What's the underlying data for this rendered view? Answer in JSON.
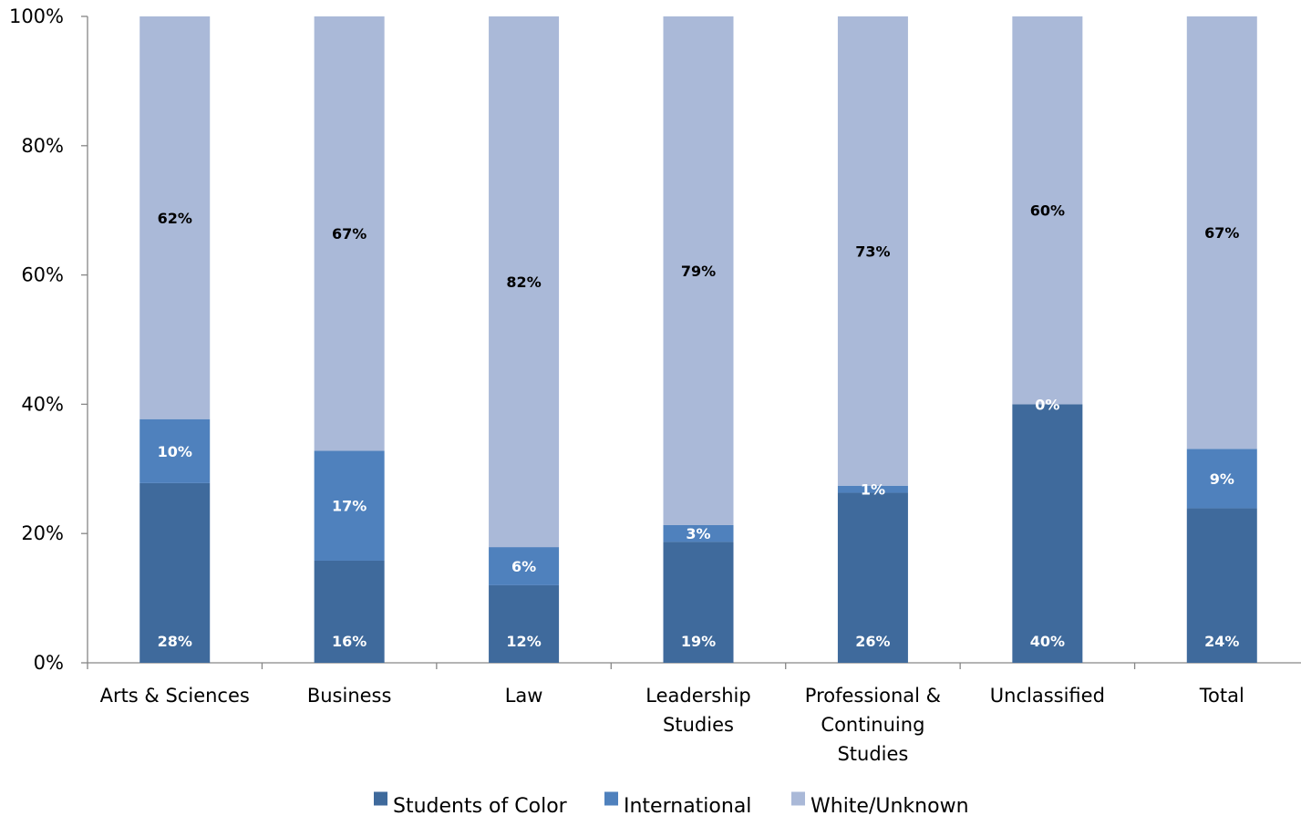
{
  "chart_data": {
    "type": "bar",
    "stacked": true,
    "percent_stacked": true,
    "title": "",
    "xlabel": "",
    "ylabel": "",
    "ylim": [
      0,
      100
    ],
    "y_ticks": [
      0,
      20,
      40,
      60,
      80,
      100
    ],
    "y_tick_labels": [
      "0%",
      "20%",
      "40%",
      "60%",
      "80%",
      "100%"
    ],
    "grid": false,
    "legend_position": "bottom",
    "categories": [
      [
        "Arts & Sciences"
      ],
      [
        "Business"
      ],
      [
        "Law"
      ],
      [
        "Leadership",
        "Studies"
      ],
      [
        "Professional &",
        "Continuing",
        "Studies"
      ],
      [
        "Unclassified"
      ],
      [
        "Total"
      ]
    ],
    "series": [
      {
        "name": "Students of Color",
        "color": "#3F6A9C",
        "label_color": "#FFFFFF",
        "values": [
          27.8,
          15.8,
          12.0,
          18.7,
          26.3,
          40.0,
          23.9
        ],
        "labels": [
          "28%",
          "16%",
          "12%",
          "19%",
          "26%",
          "40%",
          "24%"
        ]
      },
      {
        "name": "International",
        "color": "#4F81BD",
        "label_color": "#FFFFFF",
        "values": [
          9.9,
          17.0,
          5.9,
          2.6,
          1.1,
          0.0,
          9.2
        ],
        "labels": [
          "10%",
          "17%",
          "6%",
          "3%",
          "1%",
          "0%",
          "9%"
        ]
      },
      {
        "name": "White/Unknown",
        "color": "#AAB9D8",
        "label_color": "#000000",
        "values": [
          62.3,
          67.2,
          82.1,
          78.7,
          72.6,
          60.0,
          66.9
        ],
        "labels": [
          "62%",
          "67%",
          "82%",
          "79%",
          "73%",
          "60%",
          "67%"
        ]
      }
    ]
  }
}
